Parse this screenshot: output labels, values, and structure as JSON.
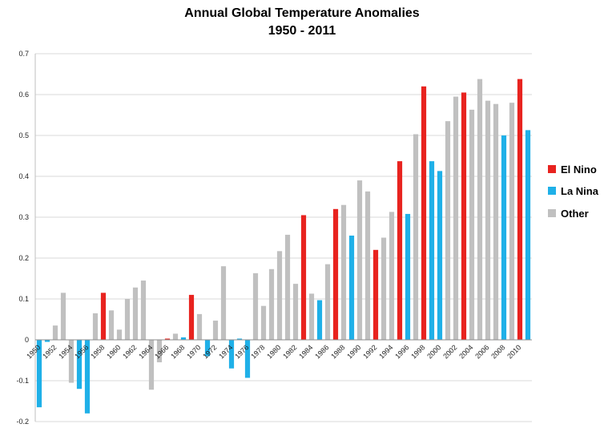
{
  "chart_data": {
    "type": "bar",
    "title": "Annual Global Temperature Anomalies",
    "subtitle": "1950 - 2011",
    "xlabel": "",
    "ylabel": "",
    "ylim": [
      -0.2,
      0.7
    ],
    "y_ticks": [
      -0.2,
      -0.1,
      0,
      0.1,
      0.2,
      0.3,
      0.4,
      0.5,
      0.6,
      0.7
    ],
    "y_tick_labels": [
      "-0.2",
      "-0.1",
      "0",
      "0.1",
      "0.2",
      "0.3",
      "0.4",
      "0.5",
      "0.6",
      "0.7"
    ],
    "x_tick_labels": [
      "1950",
      "1952",
      "1954",
      "1956",
      "1958",
      "1960",
      "1962",
      "1964",
      "1966",
      "1968",
      "1970",
      "1972",
      "1974",
      "1976",
      "1978",
      "1980",
      "1982",
      "1984",
      "1986",
      "1988",
      "1990",
      "1992",
      "1994",
      "1996",
      "1998",
      "2000",
      "2002",
      "2004",
      "2006",
      "2008",
      "2010"
    ],
    "grid": "horizontal",
    "legend_position": "right",
    "colors": {
      "el_nino": "#e8231f",
      "la_nina": "#1fb0e8",
      "other": "#c0c0c0"
    },
    "legend": [
      {
        "key": "el_nino",
        "label": "El Nino"
      },
      {
        "key": "la_nina",
        "label": "La Nina"
      },
      {
        "key": "other",
        "label": "Other"
      }
    ],
    "years": [
      1950,
      1951,
      1952,
      1953,
      1954,
      1955,
      1956,
      1957,
      1958,
      1959,
      1960,
      1961,
      1962,
      1963,
      1964,
      1965,
      1966,
      1967,
      1968,
      1969,
      1970,
      1971,
      1972,
      1973,
      1974,
      1975,
      1976,
      1977,
      1978,
      1979,
      1980,
      1981,
      1982,
      1983,
      1984,
      1985,
      1986,
      1987,
      1988,
      1989,
      1990,
      1991,
      1992,
      1993,
      1994,
      1995,
      1996,
      1997,
      1998,
      1999,
      2000,
      2001,
      2002,
      2003,
      2004,
      2005,
      2006,
      2007,
      2008,
      2009,
      2010,
      2011
    ],
    "values": [
      -0.165,
      -0.005,
      0.035,
      0.115,
      -0.105,
      -0.12,
      -0.18,
      0.065,
      0.115,
      0.072,
      0.025,
      0.1,
      0.128,
      0.145,
      -0.122,
      -0.055,
      0.003,
      0.015,
      0.006,
      0.11,
      0.063,
      -0.04,
      0.047,
      0.18,
      -0.07,
      0.003,
      -0.093,
      0.163,
      0.083,
      0.173,
      0.217,
      0.257,
      0.137,
      0.305,
      0.113,
      0.097,
      0.185,
      0.32,
      0.33,
      0.255,
      0.39,
      0.363,
      0.22,
      0.25,
      0.313,
      0.437,
      0.308,
      0.503,
      0.62,
      0.437,
      0.413,
      0.535,
      0.595,
      0.605,
      0.563,
      0.638,
      0.585,
      0.577,
      0.5,
      0.58,
      0.638,
      0.513
    ],
    "categories": [
      "la_nina",
      "la_nina",
      "other",
      "other",
      "other",
      "la_nina",
      "la_nina",
      "other",
      "el_nino",
      "other",
      "other",
      "other",
      "other",
      "other",
      "other",
      "other",
      "el_nino",
      "other",
      "la_nina",
      "el_nino",
      "other",
      "la_nina",
      "other",
      "other",
      "la_nina",
      "la_nina",
      "la_nina",
      "other",
      "other",
      "other",
      "other",
      "other",
      "other",
      "el_nino",
      "other",
      "la_nina",
      "other",
      "el_nino",
      "other",
      "la_nina",
      "other",
      "other",
      "el_nino",
      "other",
      "other",
      "el_nino",
      "la_nina",
      "other",
      "el_nino",
      "la_nina",
      "la_nina",
      "other",
      "other",
      "el_nino",
      "other",
      "other",
      "other",
      "other",
      "la_nina",
      "other",
      "el_nino",
      "la_nina"
    ]
  }
}
